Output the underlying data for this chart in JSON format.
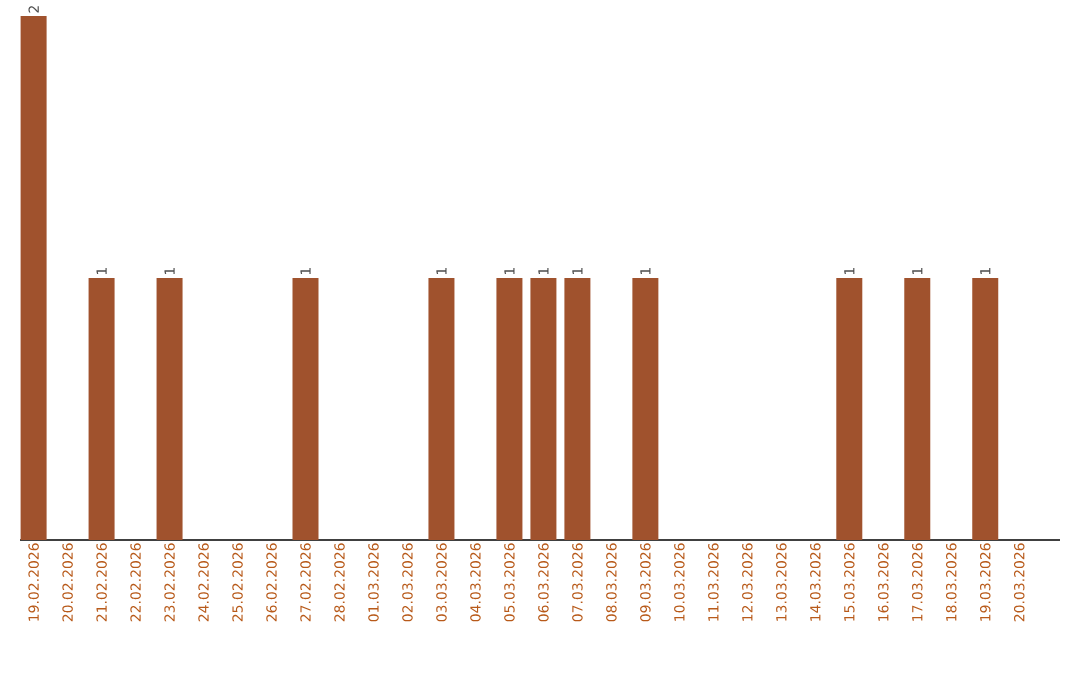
{
  "chart_data": {
    "type": "bar",
    "categories": [
      "19.02.2026",
      "20.02.2026",
      "21.02.2026",
      "22.02.2026",
      "23.02.2026",
      "24.02.2026",
      "25.02.2026",
      "26.02.2026",
      "27.02.2026",
      "28.02.2026",
      "01.03.2026",
      "02.03.2026",
      "03.03.2026",
      "04.03.2026",
      "05.03.2026",
      "06.03.2026",
      "07.03.2026",
      "08.03.2026",
      "09.03.2026",
      "10.03.2026",
      "11.03.2026",
      "12.03.2026",
      "13.03.2026",
      "14.03.2026",
      "15.03.2026",
      "16.03.2026",
      "17.03.2026",
      "18.03.2026",
      "19.03.2026",
      "20.03.2026"
    ],
    "values": [
      2,
      0,
      1,
      0,
      1,
      0,
      0,
      0,
      1,
      0,
      0,
      0,
      1,
      0,
      1,
      1,
      1,
      0,
      1,
      0,
      0,
      0,
      0,
      0,
      1,
      0,
      1,
      0,
      1,
      0
    ],
    "value_labels": [
      "2",
      null,
      "1",
      null,
      "1",
      null,
      null,
      null,
      "1",
      null,
      null,
      null,
      "1",
      null,
      "1",
      "1",
      "1",
      null,
      "1",
      null,
      null,
      null,
      null,
      null,
      "1",
      null,
      "1",
      null,
      "1",
      null
    ],
    "color": "#a0522d"
  }
}
